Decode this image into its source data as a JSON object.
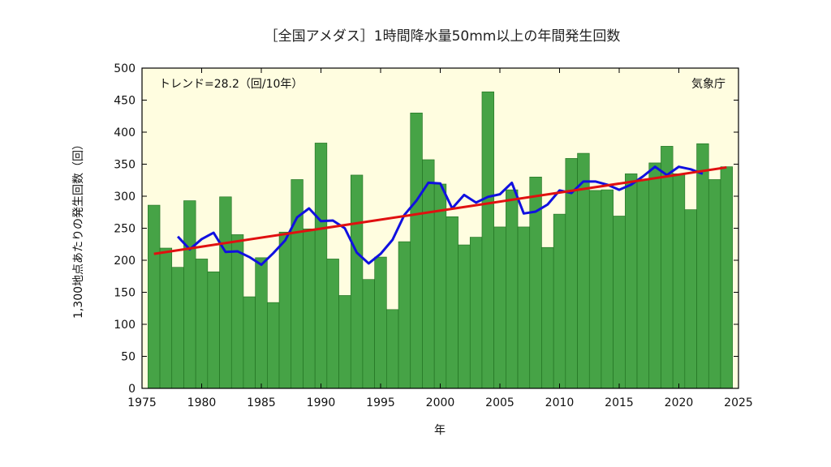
{
  "chart_data": {
    "type": "bar",
    "title": "［全国アメダス］1時間降水量50mm以上の年間発生回数",
    "xlabel": "年",
    "ylabel": "1,300地点あたりの発生回数（回）",
    "trend_label": "トレンド=28.2（回/10年）",
    "source_label": "気象庁",
    "xlim": [
      1975,
      2025
    ],
    "ylim": [
      0,
      500
    ],
    "x_ticks": [
      1975,
      1980,
      1985,
      1990,
      1995,
      2000,
      2005,
      2010,
      2015,
      2020,
      2025
    ],
    "y_ticks": [
      0,
      50,
      100,
      150,
      200,
      250,
      300,
      350,
      400,
      450,
      500
    ],
    "grid": false,
    "colors": {
      "bar": "#46a346",
      "bar_edge": "#1e6e1e",
      "moving_average": "#1010e0",
      "trend": "#e01010",
      "plot_bg": "#fffde0"
    },
    "years": [
      1976,
      1977,
      1978,
      1979,
      1980,
      1981,
      1982,
      1983,
      1984,
      1985,
      1986,
      1987,
      1988,
      1989,
      1990,
      1991,
      1992,
      1993,
      1994,
      1995,
      1996,
      1997,
      1998,
      1999,
      2000,
      2001,
      2002,
      2003,
      2004,
      2005,
      2006,
      2007,
      2008,
      2009,
      2010,
      2011,
      2012,
      2013,
      2014,
      2015,
      2016,
      2017,
      2018,
      2019,
      2020,
      2021,
      2022,
      2023,
      2024
    ],
    "values": [
      286,
      219,
      189,
      293,
      202,
      182,
      299,
      240,
      143,
      204,
      134,
      244,
      326,
      249,
      383,
      202,
      145,
      333,
      170,
      205,
      123,
      229,
      430,
      357,
      319,
      268,
      224,
      236,
      463,
      252,
      310,
      252,
      330,
      220,
      272,
      359,
      367,
      309,
      310,
      269,
      335,
      326,
      352,
      378,
      335,
      279,
      382,
      326,
      346
    ],
    "moving_average": {
      "years": [
        1978,
        1979,
        1980,
        1981,
        1982,
        1983,
        1984,
        1985,
        1986,
        1987,
        1988,
        1989,
        1990,
        1991,
        1992,
        1993,
        1994,
        1995,
        1996,
        1997,
        1998,
        1999,
        2000,
        2001,
        2002,
        2003,
        2004,
        2005,
        2006,
        2007,
        2008,
        2009,
        2010,
        2011,
        2012,
        2013,
        2014,
        2015,
        2016,
        2017,
        2018,
        2019,
        2020,
        2021,
        2022
      ],
      "values": [
        237,
        217,
        233,
        243,
        213,
        214,
        205,
        193,
        211,
        231,
        267,
        281,
        261,
        262,
        250,
        212,
        195,
        210,
        232,
        271,
        293,
        321,
        320,
        281,
        302,
        290,
        299,
        303,
        321,
        273,
        276,
        287,
        309,
        305,
        323,
        323,
        318,
        310,
        318,
        331,
        346,
        333,
        346,
        342,
        335
      ]
    },
    "trend": {
      "x": [
        1976,
        2024
      ],
      "y": [
        210,
        345
      ]
    }
  }
}
